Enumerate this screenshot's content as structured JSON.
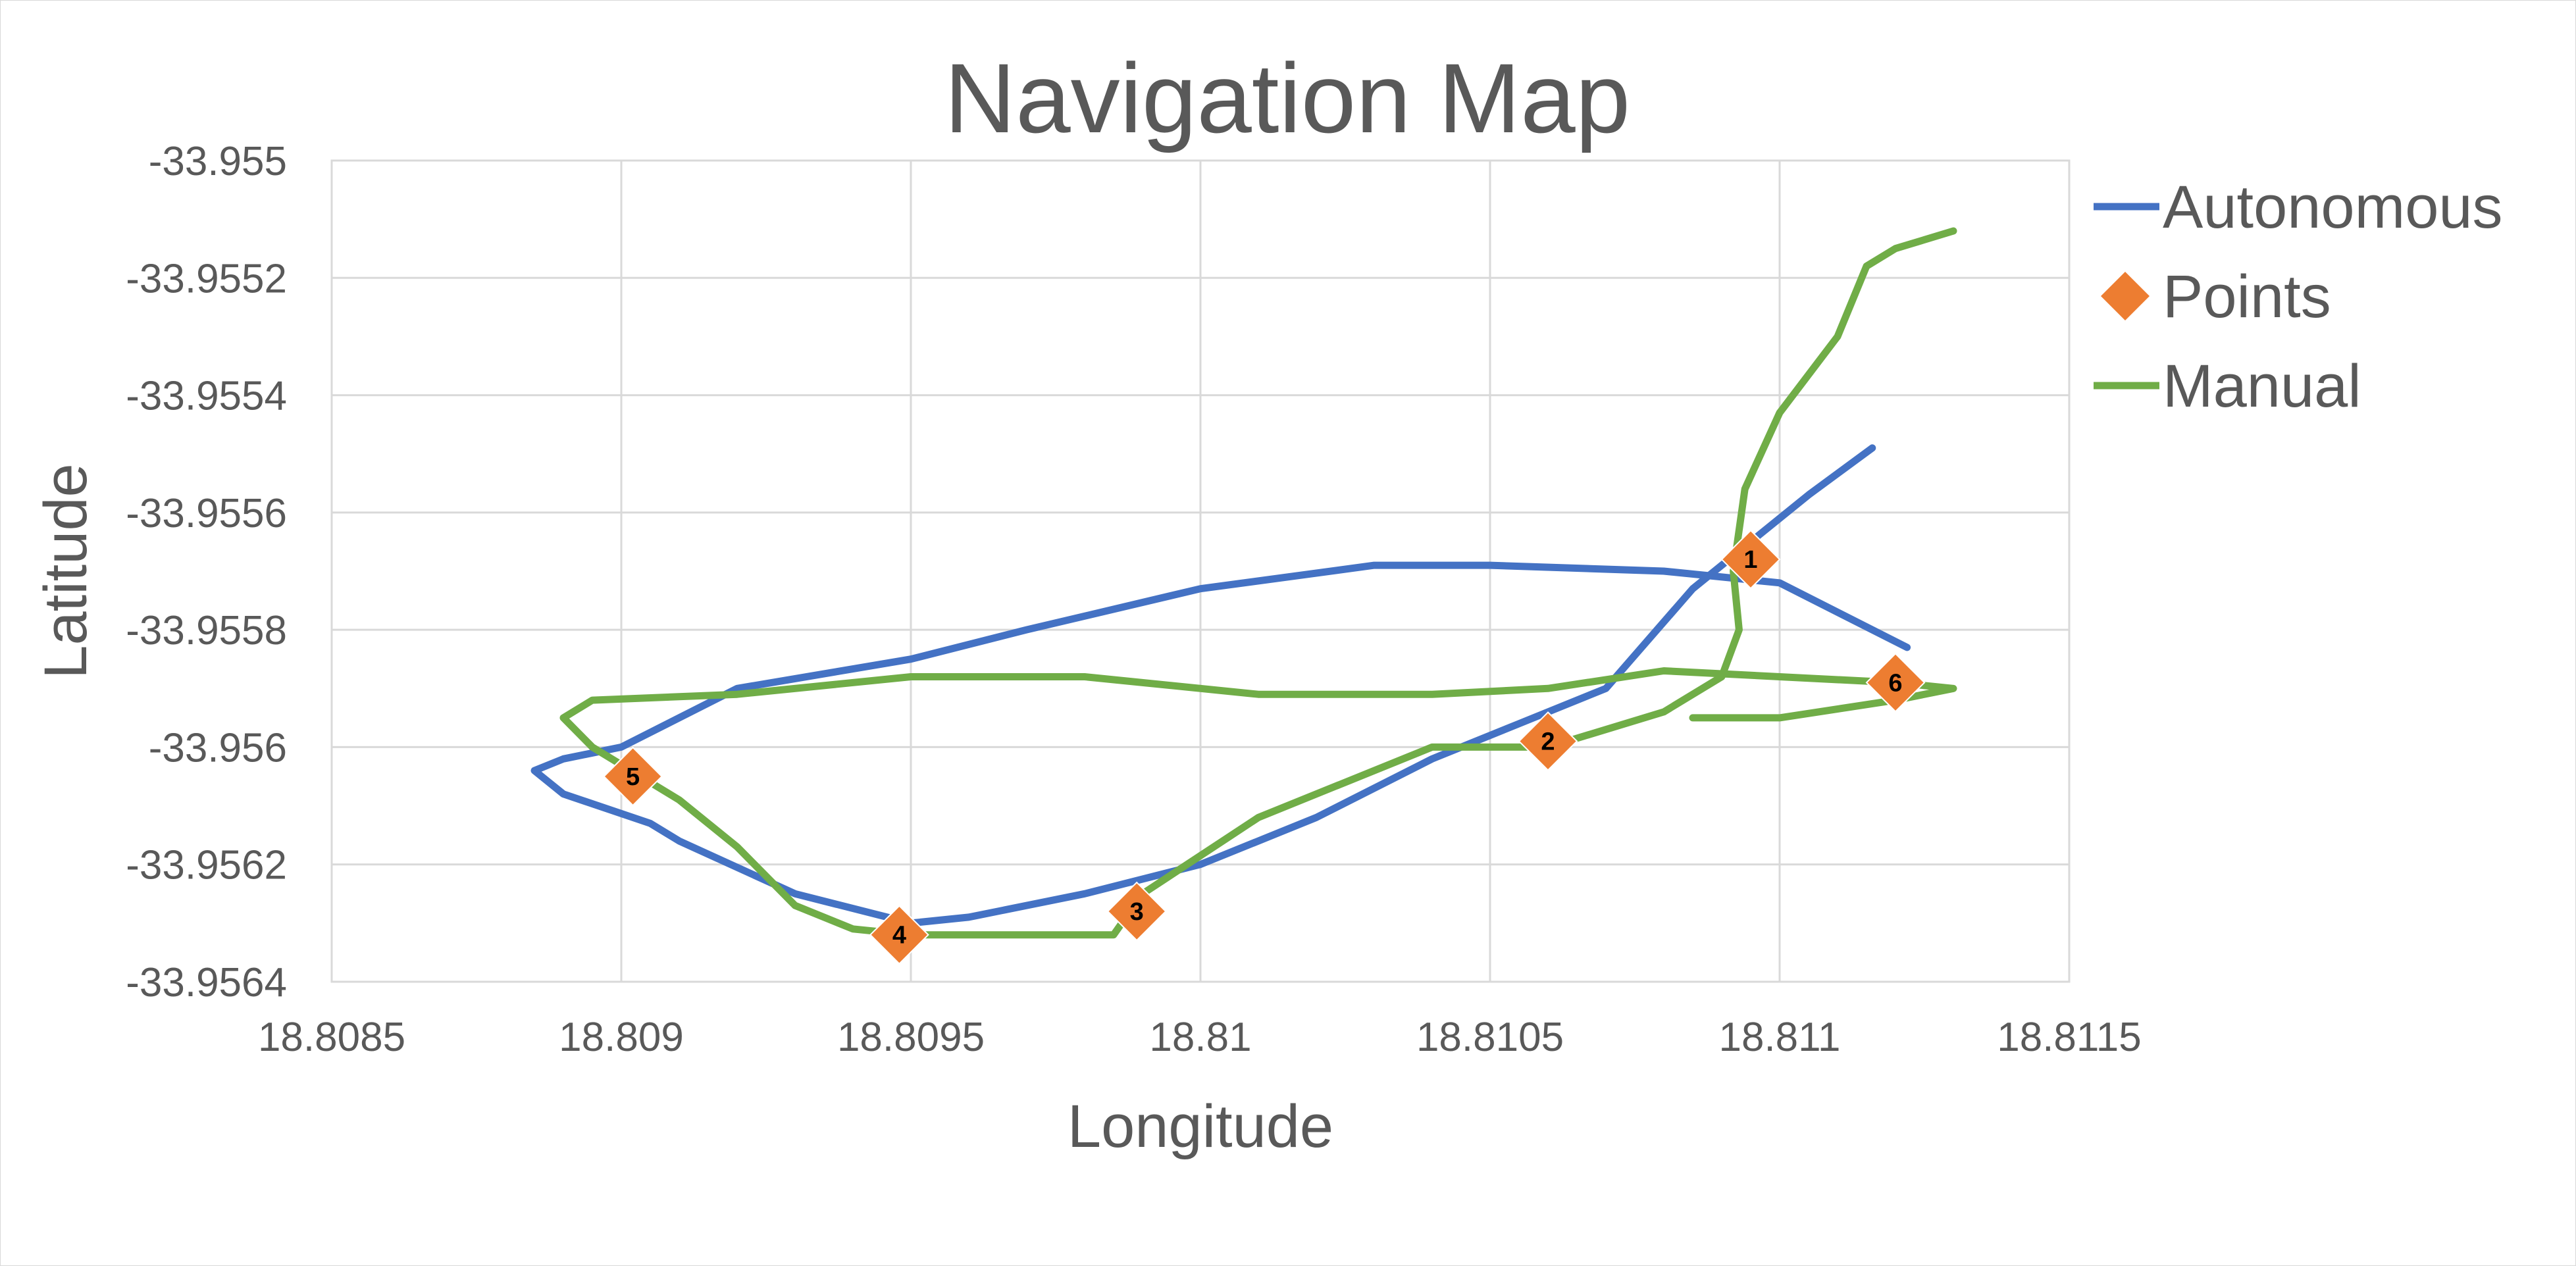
{
  "chart_data": {
    "type": "line",
    "title": "Navigation Map",
    "xlabel": "Longitude",
    "ylabel": "Latitude",
    "xlim": [
      18.8085,
      18.8115
    ],
    "ylim": [
      -33.9564,
      -33.955
    ],
    "x_ticks": [
      "18.8085",
      "18.809",
      "18.8095",
      "18.81",
      "18.8105",
      "18.811",
      "18.8115"
    ],
    "y_ticks": [
      "-33.955",
      "-33.9552",
      "-33.9554",
      "-33.9556",
      "-33.9558",
      "-33.956",
      "-33.9562",
      "-33.9564"
    ],
    "grid": true,
    "legend_position": "right",
    "series": [
      {
        "name": "Autonomous",
        "kind": "line",
        "color": "#4472C4",
        "points": [
          [
            18.81116,
            -33.95549
          ],
          [
            18.81105,
            -33.95557
          ],
          [
            18.81085,
            -33.95573
          ],
          [
            18.8107,
            -33.9559
          ],
          [
            18.81055,
            -33.95596
          ],
          [
            18.8104,
            -33.95602
          ],
          [
            18.8102,
            -33.95612
          ],
          [
            18.81,
            -33.9562
          ],
          [
            18.8098,
            -33.95625
          ],
          [
            18.8096,
            -33.95629
          ],
          [
            18.8095,
            -33.9563
          ],
          [
            18.8093,
            -33.95625
          ],
          [
            18.8091,
            -33.95616
          ],
          [
            18.80905,
            -33.95613
          ],
          [
            18.8089,
            -33.95608
          ],
          [
            18.80885,
            -33.95604
          ],
          [
            18.8089,
            -33.95602
          ],
          [
            18.809,
            -33.956
          ],
          [
            18.8092,
            -33.9559
          ],
          [
            18.8095,
            -33.95585
          ],
          [
            18.8097,
            -33.9558
          ],
          [
            18.81,
            -33.95573
          ],
          [
            18.8103,
            -33.95569
          ],
          [
            18.8105,
            -33.95569
          ],
          [
            18.8108,
            -33.9557
          ],
          [
            18.811,
            -33.95572
          ],
          [
            18.81122,
            -33.95583
          ]
        ]
      },
      {
        "name": "Points",
        "kind": "markers",
        "color": "#ED7D31",
        "points": [
          {
            "label": "1",
            "x": 18.81095,
            "y": -33.95568
          },
          {
            "label": "2",
            "x": 18.8106,
            "y": -33.95599
          },
          {
            "label": "3",
            "x": 18.80989,
            "y": -33.95628
          },
          {
            "label": "4",
            "x": 18.80948,
            "y": -33.95632
          },
          {
            "label": "5",
            "x": 18.80902,
            "y": -33.95605
          },
          {
            "label": "6",
            "x": 18.8112,
            "y": -33.95589
          }
        ]
      },
      {
        "name": "Manual",
        "kind": "line",
        "color": "#70AD47",
        "points": [
          [
            18.8113,
            -33.95512
          ],
          [
            18.8112,
            -33.95515
          ],
          [
            18.81115,
            -33.95518
          ],
          [
            18.8111,
            -33.9553
          ],
          [
            18.811,
            -33.95543
          ],
          [
            18.81094,
            -33.95556
          ],
          [
            18.81092,
            -33.9557
          ],
          [
            18.81093,
            -33.9558
          ],
          [
            18.8109,
            -33.95588
          ],
          [
            18.8108,
            -33.95594
          ],
          [
            18.8106,
            -33.956
          ],
          [
            18.8104,
            -33.956
          ],
          [
            18.8101,
            -33.95612
          ],
          [
            18.8099,
            -33.95625
          ],
          [
            18.80985,
            -33.95632
          ],
          [
            18.8097,
            -33.95632
          ],
          [
            18.8095,
            -33.95632
          ],
          [
            18.8094,
            -33.95631
          ],
          [
            18.8093,
            -33.95627
          ],
          [
            18.8092,
            -33.95617
          ],
          [
            18.8091,
            -33.95609
          ],
          [
            18.80895,
            -33.956
          ],
          [
            18.8089,
            -33.95595
          ],
          [
            18.80895,
            -33.95592
          ],
          [
            18.8092,
            -33.95591
          ],
          [
            18.8095,
            -33.95588
          ],
          [
            18.8097,
            -33.95588
          ],
          [
            18.8098,
            -33.95588
          ],
          [
            18.8101,
            -33.95591
          ],
          [
            18.8104,
            -33.95591
          ],
          [
            18.8106,
            -33.9559
          ],
          [
            18.8108,
            -33.95587
          ],
          [
            18.811,
            -33.95588
          ],
          [
            18.8112,
            -33.95589
          ],
          [
            18.8113,
            -33.9559
          ],
          [
            18.8112,
            -33.95592
          ],
          [
            18.811,
            -33.95595
          ],
          [
            18.8109,
            -33.95595
          ],
          [
            18.81085,
            -33.95595
          ]
        ]
      }
    ]
  }
}
